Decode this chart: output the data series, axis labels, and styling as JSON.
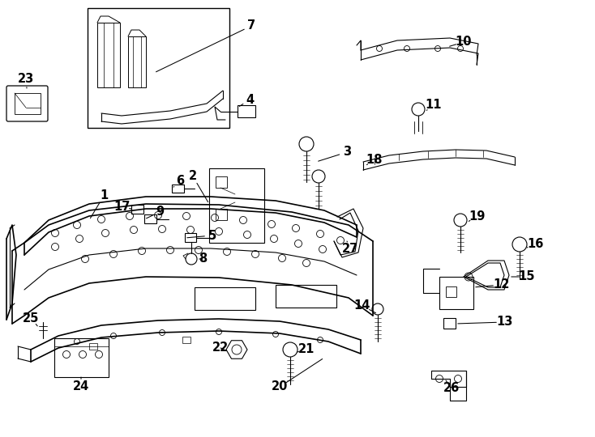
{
  "bg_color": "#ffffff",
  "line_color": "#000000",
  "label_color": "#000000",
  "label_fontsize": 10.5,
  "fig_width": 7.34,
  "fig_height": 5.4,
  "dpi": 100
}
